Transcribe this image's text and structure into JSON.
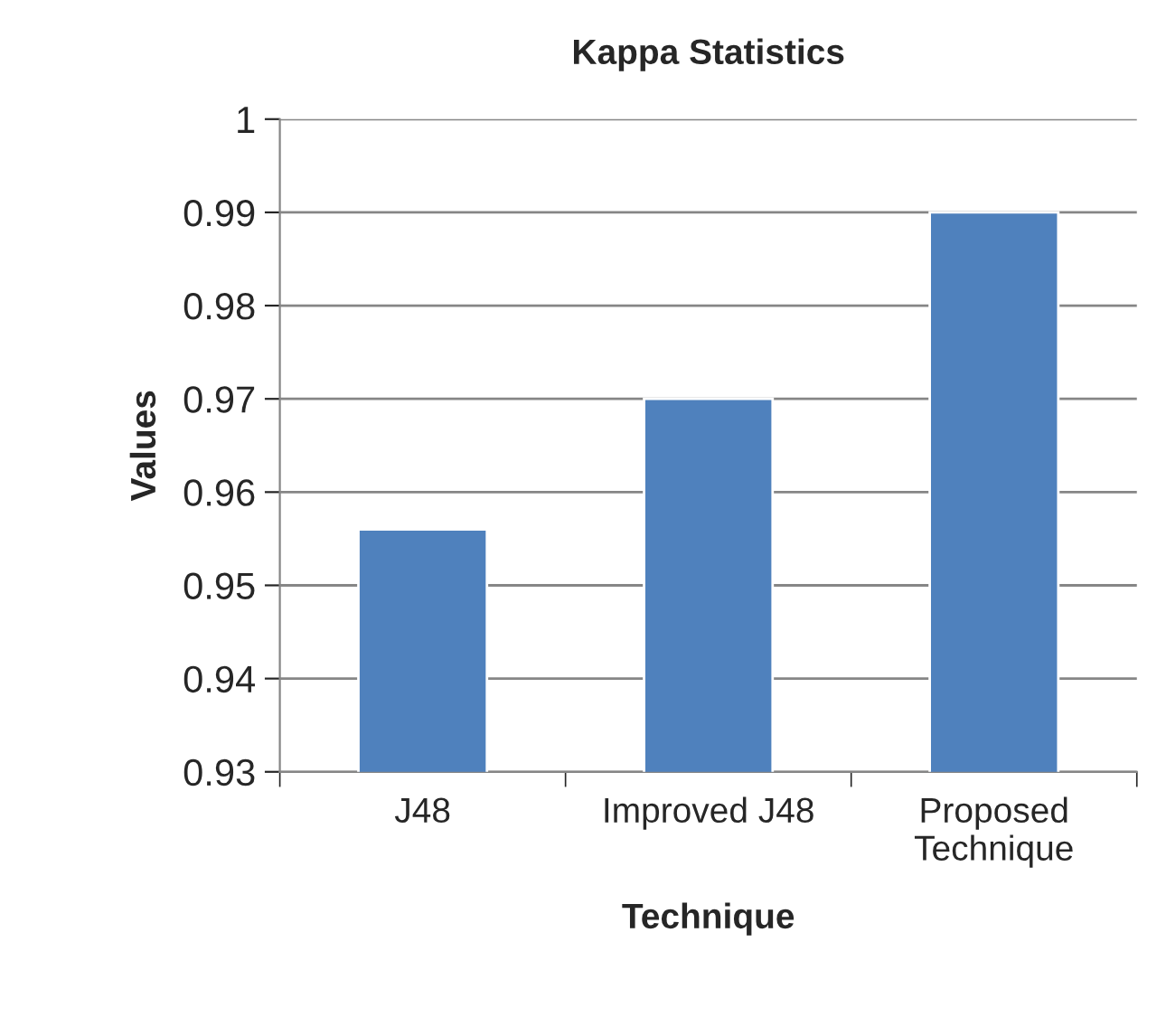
{
  "chart_data": {
    "type": "bar",
    "title": "Kappa Statistics",
    "xlabel": "Technique",
    "ylabel": "Values",
    "categories": [
      "J48",
      "Improved J48",
      "Proposed\nTechnique"
    ],
    "values": [
      0.956,
      0.97,
      0.99
    ],
    "color": "#4f81bd",
    "ylim": [
      0.93,
      1
    ],
    "yticks": [
      0.93,
      0.94,
      0.95,
      0.96,
      0.97,
      0.98,
      0.99,
      1
    ],
    "grid": "y",
    "legend": false
  }
}
